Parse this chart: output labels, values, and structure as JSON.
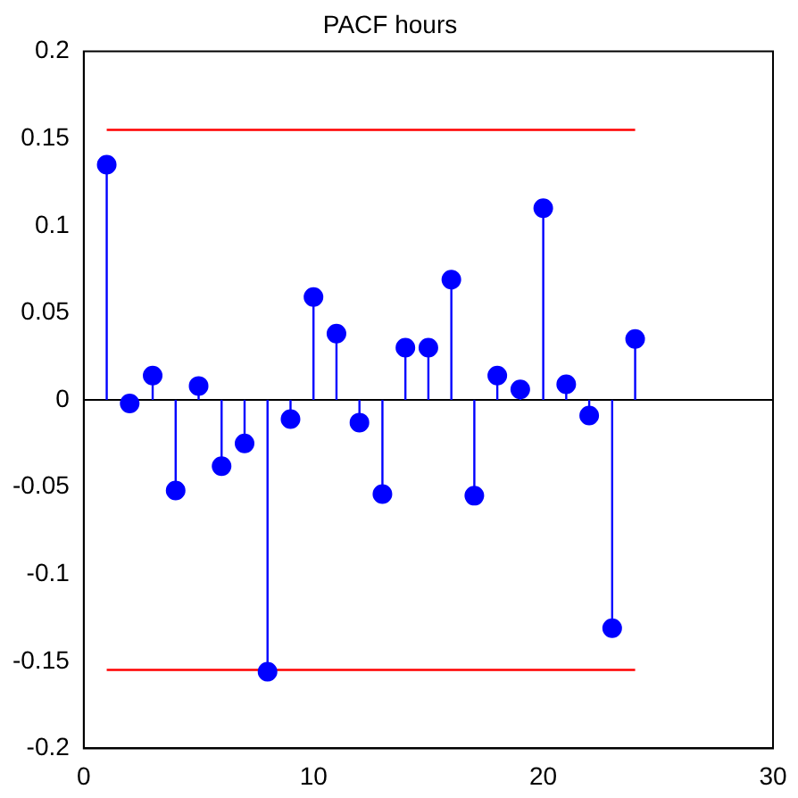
{
  "chart_data": {
    "type": "lollipop",
    "title": "PACF hours",
    "xlim": [
      0,
      30
    ],
    "xticks": [
      0,
      10,
      20,
      30
    ],
    "ylim": [
      -0.2,
      0.2
    ],
    "yticks": [
      -0.2,
      -0.15,
      -0.1,
      -0.05,
      0,
      0.05,
      0.1,
      0.15,
      0.2
    ],
    "grid": false,
    "legend": false,
    "marker": "circle",
    "ref_lines": [
      {
        "axis": "y",
        "value": 0,
        "color": "#000000"
      }
    ],
    "series": [
      {
        "type": "lollipop",
        "color": "#0000ff",
        "x": [
          1,
          2,
          3,
          4,
          5,
          6,
          7,
          8,
          9,
          10,
          11,
          12,
          13,
          14,
          15,
          16,
          17,
          18,
          19,
          20,
          21,
          22,
          23,
          24
        ],
        "values": [
          0.135,
          -0.002,
          0.014,
          -0.052,
          0.008,
          -0.038,
          -0.025,
          -0.156,
          -0.011,
          0.059,
          0.038,
          -0.013,
          -0.054,
          0.03,
          0.03,
          0.069,
          -0.055,
          0.014,
          0.006,
          0.11,
          0.009,
          -0.009,
          -0.131,
          0.035
        ]
      },
      {
        "type": "line",
        "color": "#ff0000",
        "marker": "none",
        "x": [
          1,
          24
        ],
        "values": [
          0.155,
          0.155
        ]
      },
      {
        "type": "line",
        "color": "#ff0000",
        "marker": "none",
        "x": [
          1,
          24
        ],
        "values": [
          -0.155,
          -0.155
        ]
      }
    ]
  }
}
